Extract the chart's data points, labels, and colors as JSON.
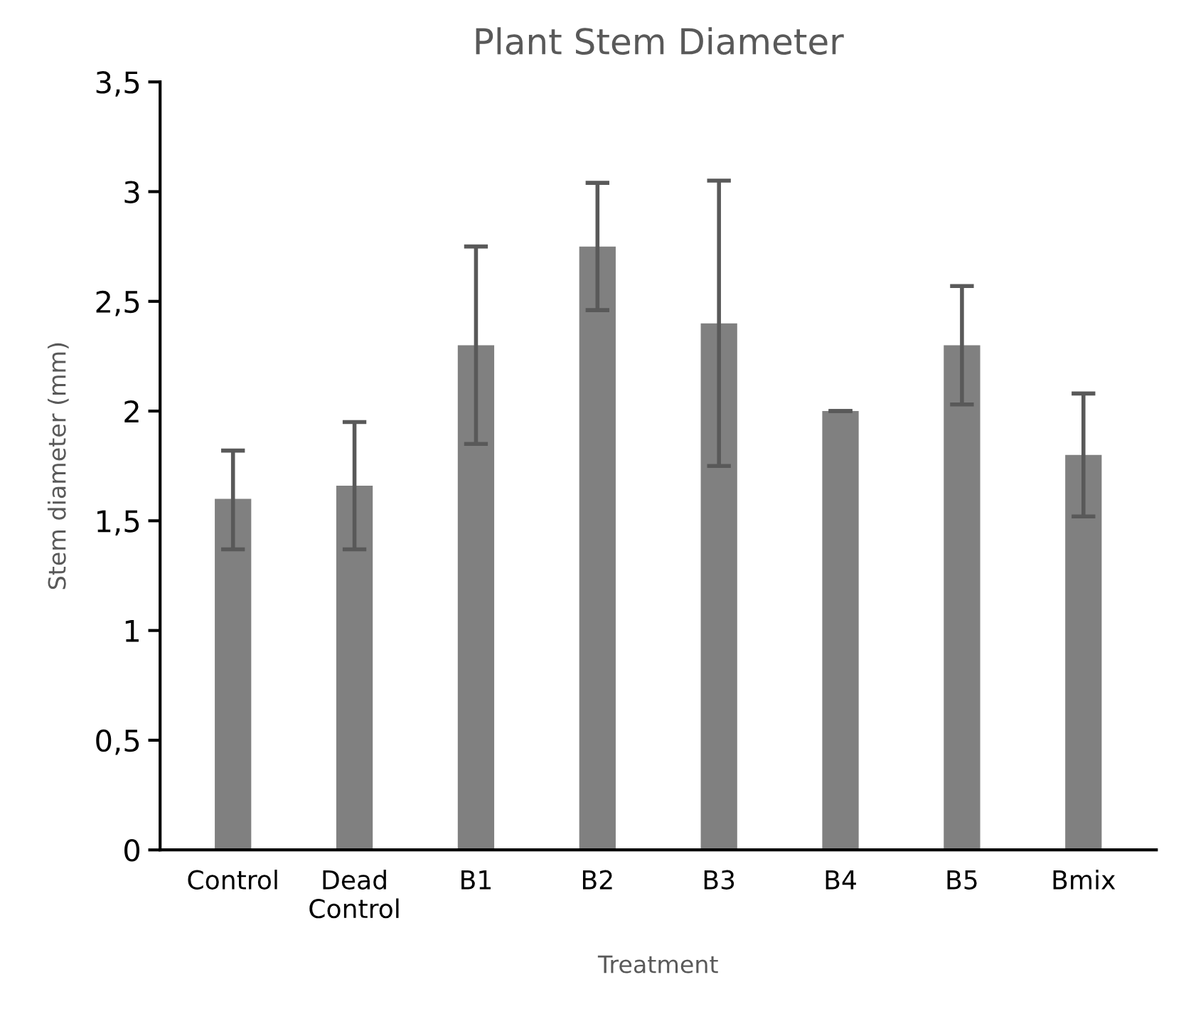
{
  "chart_data": {
    "type": "bar",
    "title": "Plant Stem Diameter",
    "xlabel": "Treatment",
    "ylabel": "Stem diameter (mm)",
    "categories": [
      "Control",
      "Dead\nControl",
      "B1",
      "B2",
      "B3",
      "B4",
      "B5",
      "Bmix"
    ],
    "values": [
      1.6,
      1.66,
      2.3,
      2.75,
      2.4,
      2.0,
      2.3,
      1.8
    ],
    "errors": [
      [
        1.37,
        1.82
      ],
      [
        1.37,
        1.95
      ],
      [
        1.85,
        2.75
      ],
      [
        2.46,
        3.04
      ],
      [
        1.75,
        3.05
      ],
      [
        2.0,
        2.0
      ],
      [
        2.03,
        2.57
      ],
      [
        1.52,
        2.08
      ]
    ],
    "color": "#808080",
    "ylim": [
      0,
      3.5
    ],
    "yticks": [
      0,
      {
        "value": 0.5,
        "label": "0,5"
      },
      1,
      {
        "value": 1.5,
        "label": "1,5"
      },
      2,
      {
        "value": 2.5,
        "label": "2,5"
      },
      3,
      {
        "value": 3.5,
        "label": "3,5"
      }
    ],
    "grid": false,
    "legend": false
  }
}
